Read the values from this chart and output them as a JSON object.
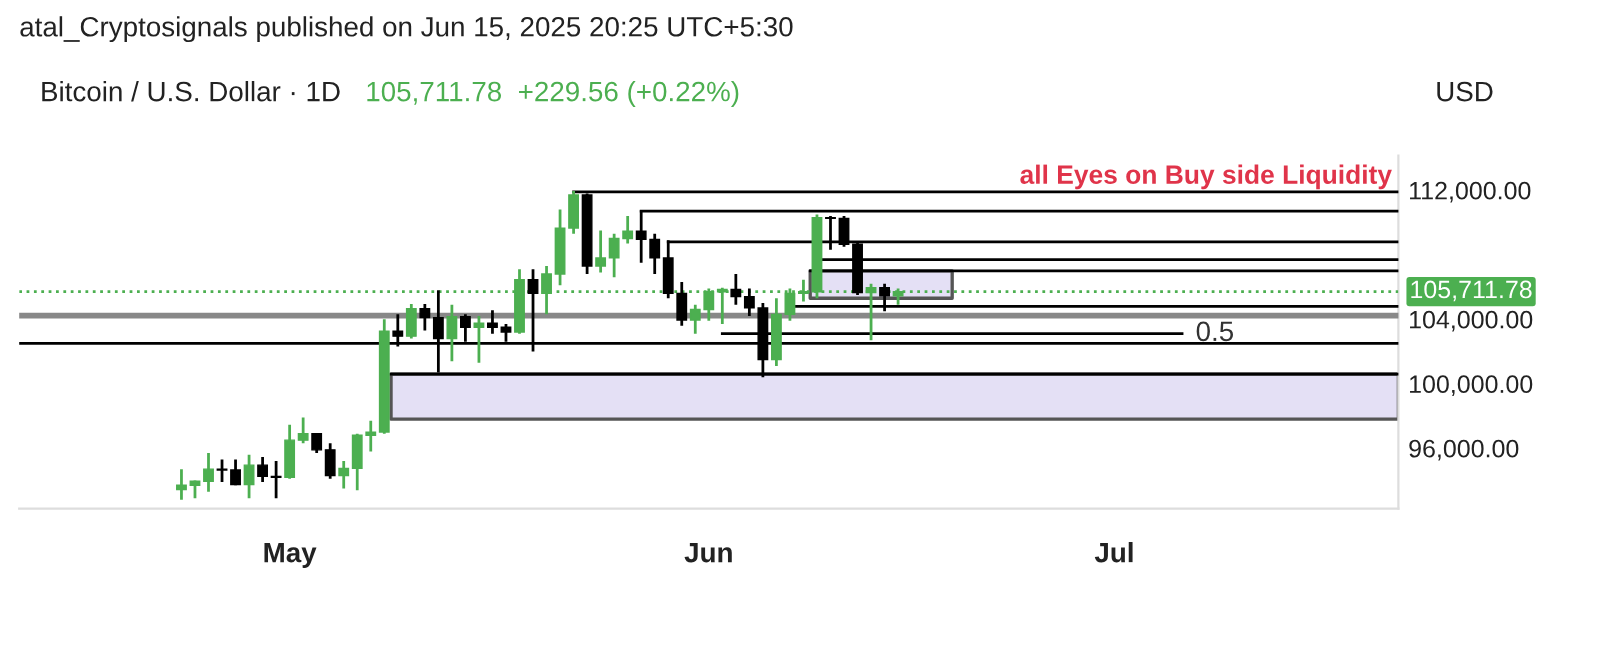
{
  "chart_data": {
    "type": "candlestick",
    "title": "Bitcoin / U.S. Dollar · 1D",
    "subtitle": "105,711.78  +229.56 (+0.22%)",
    "annotations": [
      "atal_Cryptosignals published on Jun 15, 2025 20:25 UTC+5:30",
      "USD",
      "all Eyes on Buy side Liquidity",
      {
        "text": "0.5",
        "x": "2025-07-07",
        "y": 103100
      }
    ],
    "xlim": [
      "2025-04-11",
      "2025-07-22"
    ],
    "xticks": [
      {
        "value": "2025-05-01",
        "label": "May"
      },
      {
        "value": "2025-06-01",
        "label": "Jun"
      },
      {
        "value": "2025-07-01",
        "label": "Jul"
      }
    ],
    "ylim": [
      92250,
      114150
    ],
    "yticks": [
      {
        "value": 96000,
        "label": "96,000.00"
      },
      {
        "value": 100000,
        "label": "100,000.00"
      },
      {
        "value": 104000,
        "label": "104,000.00"
      },
      {
        "value": 112000,
        "label": "112,000.00"
      }
    ],
    "grid": false,
    "ref_lines": [
      {
        "axis": "y",
        "value": 105711.78,
        "label": "105,711.78",
        "color": "#4caf50",
        "line_style": "dotted"
      },
      {
        "axis": "y",
        "value": 104220,
        "color": "#888888",
        "line_style": "solid"
      },
      {
        "axis": "y",
        "value": 102500,
        "color": "#000000",
        "line_style": "solid"
      }
    ],
    "series": [
      {
        "type": "line",
        "color": "#000000",
        "x": [
          "2025-05-08T12:00",
          "2025-07-22"
        ],
        "values": [
          100600,
          100600
        ],
        "upper": [
          100600,
          100600
        ],
        "lower": [
          97800,
          97800
        ]
      },
      {
        "type": "line",
        "color": "#000000",
        "x": [
          "2025-06-08T12:00",
          "2025-06-19",
          "2025-07-22"
        ],
        "values": [
          107000,
          107000,
          107000
        ],
        "upper": [
          107000,
          107000,
          null
        ],
        "lower": [
          105300,
          105300,
          null
        ]
      },
      {
        "type": "line",
        "color": "#000000",
        "x": [
          "2025-05-22",
          "2025-07-22"
        ],
        "values": [
          111900,
          111900
        ]
      },
      {
        "type": "line",
        "color": "#000000",
        "x": [
          "2025-05-27",
          "2025-07-22"
        ],
        "values": [
          110700,
          110700
        ]
      },
      {
        "type": "line",
        "color": "#000000",
        "x": [
          "2025-05-29",
          "2025-07-22"
        ],
        "values": [
          108800,
          108800
        ]
      },
      {
        "type": "line",
        "color": "#000000",
        "x": [
          "2025-06-09",
          "2025-07-22"
        ],
        "values": [
          107700,
          107700
        ]
      },
      {
        "type": "line",
        "color": "#000000",
        "x": [
          "2025-06-07",
          "2025-07-22"
        ],
        "values": [
          104800,
          104800
        ]
      },
      {
        "type": "line",
        "color": "#000000",
        "x": [
          "2025-06-02",
          "2025-07-06"
        ],
        "values": [
          103100,
          103100
        ]
      },
      {
        "x": [
          "2025-04-23",
          "2025-04-24",
          "2025-04-25",
          "2025-04-26",
          "2025-04-27",
          "2025-04-28",
          "2025-04-29",
          "2025-04-30",
          "2025-05-01",
          "2025-05-02",
          "2025-05-03",
          "2025-05-04",
          "2025-05-05",
          "2025-05-06",
          "2025-05-07",
          "2025-05-08",
          "2025-05-09",
          "2025-05-10",
          "2025-05-11",
          "2025-05-12",
          "2025-05-13",
          "2025-05-14",
          "2025-05-15",
          "2025-05-16",
          "2025-05-17",
          "2025-05-18",
          "2025-05-19",
          "2025-05-20",
          "2025-05-21",
          "2025-05-22",
          "2025-05-23",
          "2025-05-24",
          "2025-05-25",
          "2025-05-26",
          "2025-05-27",
          "2025-05-28",
          "2025-05-29",
          "2025-05-30",
          "2025-05-31",
          "2025-06-01",
          "2025-06-02",
          "2025-06-03",
          "2025-06-04",
          "2025-06-05",
          "2025-06-06",
          "2025-06-07",
          "2025-06-08",
          "2025-06-09",
          "2025-06-10",
          "2025-06-11",
          "2025-06-12",
          "2025-06-13",
          "2025-06-14",
          "2025-06-15"
        ],
        "ohlc": [
          [
            93440,
            94700,
            92800,
            93700
          ],
          [
            93700,
            94000,
            92900,
            93950
          ],
          [
            93950,
            95700,
            93300,
            94700
          ],
          [
            94700,
            95300,
            93900,
            94650
          ],
          [
            94650,
            95300,
            93700,
            93750
          ],
          [
            93750,
            95600,
            92900,
            94950
          ],
          [
            94950,
            95450,
            93900,
            94250
          ],
          [
            94250,
            95200,
            92900,
            94200
          ],
          [
            94200,
            97450,
            94100,
            96500
          ],
          [
            96500,
            97900,
            96300,
            96900
          ],
          [
            96900,
            96950,
            95700,
            95900
          ],
          [
            95900,
            96300,
            94100,
            94300
          ],
          [
            94300,
            95200,
            93500,
            94750
          ],
          [
            94750,
            96900,
            93400,
            96800
          ],
          [
            96800,
            97700,
            95800,
            97000
          ],
          [
            97000,
            104000,
            96900,
            103250
          ],
          [
            103250,
            104300,
            102300,
            102950
          ],
          [
            102950,
            104950,
            102800,
            104650
          ],
          [
            104650,
            104950,
            103300,
            104100
          ],
          [
            104100,
            105800,
            100700,
            102800
          ],
          [
            102800,
            104900,
            101400,
            104150
          ],
          [
            104150,
            104300,
            102600,
            103500
          ],
          [
            103500,
            104200,
            101300,
            103750
          ],
          [
            103750,
            104550,
            103100,
            103500
          ],
          [
            103500,
            103700,
            102600,
            103200
          ],
          [
            103200,
            107100,
            103100,
            106450
          ],
          [
            106450,
            107100,
            102000,
            105600
          ],
          [
            105600,
            107300,
            104300,
            106800
          ],
          [
            106800,
            110800,
            106100,
            109650
          ],
          [
            109650,
            111950,
            109300,
            111700
          ],
          [
            111700,
            111800,
            106800,
            107300
          ],
          [
            107300,
            109500,
            106900,
            107800
          ],
          [
            107800,
            109300,
            106600,
            109000
          ],
          [
            109000,
            110400,
            108700,
            109450
          ],
          [
            109450,
            110750,
            107500,
            108950
          ],
          [
            108950,
            109300,
            106800,
            107800
          ],
          [
            107800,
            108900,
            105300,
            105600
          ],
          [
            105600,
            106300,
            103600,
            103950
          ],
          [
            103950,
            104900,
            103100,
            104600
          ],
          [
            104600,
            105900,
            103900,
            105700
          ],
          [
            105700,
            105950,
            103700,
            105850
          ],
          [
            105850,
            106800,
            104900,
            105400
          ],
          [
            105400,
            105900,
            104200,
            104700
          ],
          [
            104700,
            105000,
            100400,
            101500
          ],
          [
            101500,
            105300,
            101100,
            104300
          ],
          [
            104300,
            105900,
            103900,
            105600
          ],
          [
            105600,
            106450,
            105100,
            105700
          ],
          [
            105700,
            110500,
            105300,
            110300
          ],
          [
            110300,
            110400,
            108300,
            110250
          ],
          [
            110250,
            110400,
            108500,
            108650
          ],
          [
            108650,
            108800,
            105500,
            105650
          ],
          [
            105650,
            106200,
            102700,
            105950
          ],
          [
            105950,
            106200,
            104500,
            105450
          ],
          [
            105450,
            105900,
            104900,
            105711.78
          ]
        ],
        "colors": [
          "#4caf50",
          "#4caf50",
          "#4caf50",
          "#000000",
          "#000000",
          "#4caf50",
          "#000000",
          "#000000",
          "#4caf50",
          "#4caf50",
          "#000000",
          "#000000",
          "#4caf50",
          "#4caf50",
          "#4caf50",
          "#4caf50",
          "#000000",
          "#4caf50",
          "#000000",
          "#000000",
          "#4caf50",
          "#000000",
          "#4caf50",
          "#000000",
          "#000000",
          "#4caf50",
          "#000000",
          "#4caf50",
          "#4caf50",
          "#4caf50",
          "#000000",
          "#4caf50",
          "#4caf50",
          "#4caf50",
          "#000000",
          "#000000",
          "#000000",
          "#000000",
          "#4caf50",
          "#4caf50",
          "#4caf50",
          "#000000",
          "#000000",
          "#000000",
          "#4caf50",
          "#4caf50",
          "#4caf50",
          "#4caf50",
          "#000000",
          "#000000",
          "#000000",
          "#4caf50",
          "#000000",
          "#4caf50"
        ]
      }
    ]
  }
}
